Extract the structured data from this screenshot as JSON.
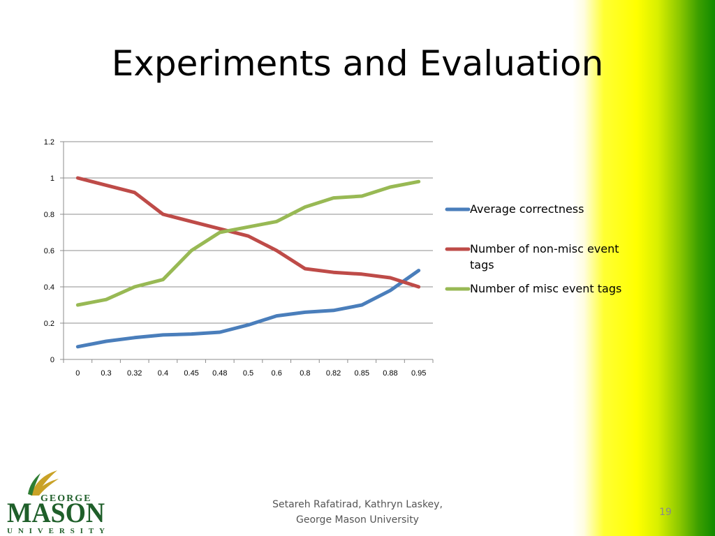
{
  "slide": {
    "title": "Experiments and Evaluation",
    "footer_line1": "Setareh Rafatirad, Kathryn Laskey,",
    "footer_line2": "George Mason University",
    "page_number": "19",
    "logo": {
      "line1": "GEORGE",
      "line2": "MASON",
      "line3": "UNIVERSITY",
      "icon": "laurel-leaf-icon"
    }
  },
  "chart_data": {
    "type": "line",
    "title": "",
    "xlabel": "",
    "ylabel": "",
    "categories": [
      "0",
      "0.3",
      "0.32",
      "0.4",
      "0.45",
      "0.48",
      "0.5",
      "0.6",
      "0.8",
      "0.82",
      "0.85",
      "0.88",
      "0.95"
    ],
    "ylim": [
      0,
      1.2
    ],
    "yticks": [
      "0",
      "0.2",
      "0.4",
      "0.6",
      "0.8",
      "1",
      "1.2"
    ],
    "grid": true,
    "legend_position": "right",
    "series": [
      {
        "name": "Average correctness",
        "color": "#4a7ebb",
        "values": [
          0.07,
          0.1,
          0.12,
          0.135,
          0.14,
          0.15,
          0.19,
          0.24,
          0.26,
          0.27,
          0.3,
          0.38,
          0.49
        ]
      },
      {
        "name": "Number of non-misc event tags",
        "color": "#be4b48",
        "values": [
          1.0,
          0.96,
          0.92,
          0.8,
          0.76,
          0.72,
          0.68,
          0.6,
          0.5,
          0.48,
          0.47,
          0.45,
          0.4
        ]
      },
      {
        "name": "Number of misc event tags",
        "color": "#98b954",
        "values": [
          0.3,
          0.33,
          0.4,
          0.44,
          0.6,
          0.7,
          0.73,
          0.76,
          0.84,
          0.89,
          0.9,
          0.95,
          0.98
        ]
      }
    ]
  }
}
